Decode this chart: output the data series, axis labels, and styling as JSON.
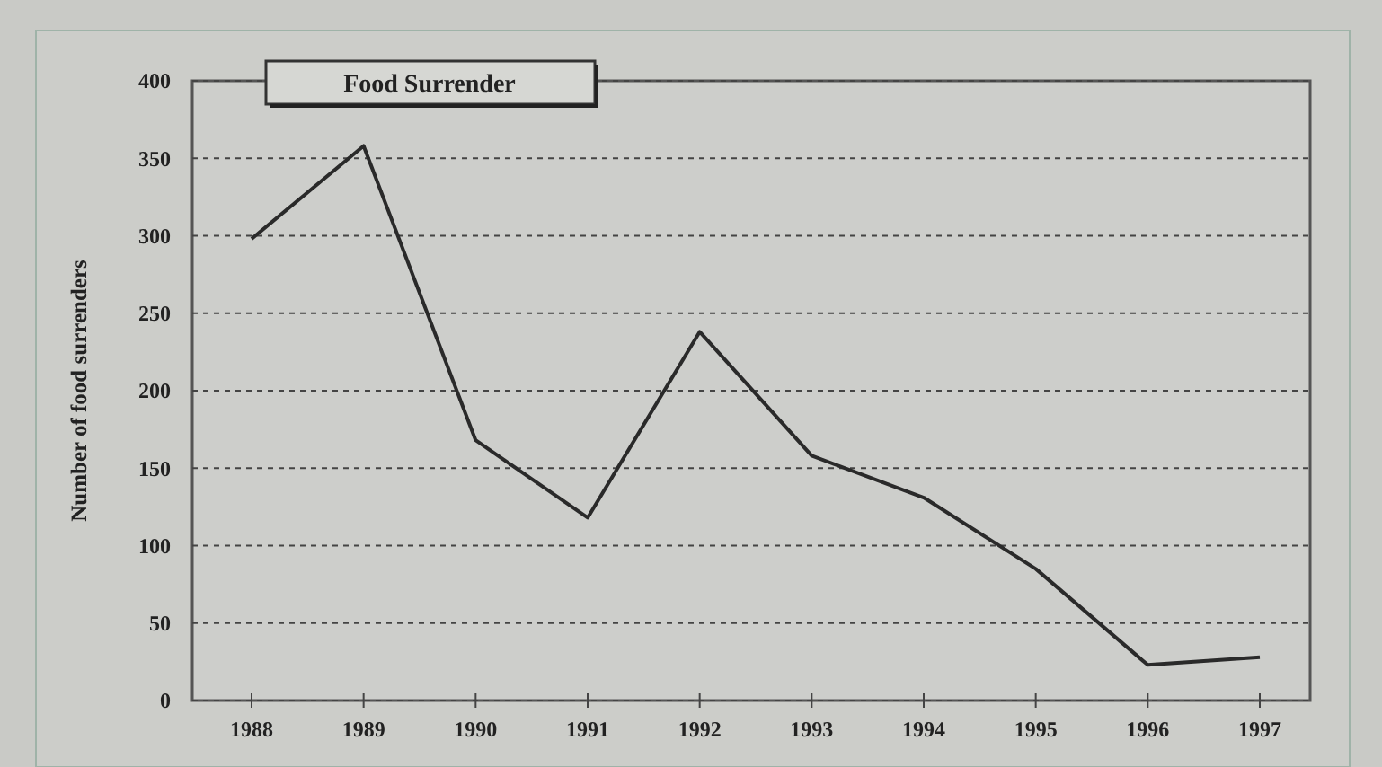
{
  "chart_data": {
    "type": "line",
    "title": "Food Surrender",
    "ylabel": "Number of food surrenders",
    "categories": [
      "1988",
      "1989",
      "1990",
      "1991",
      "1992",
      "1993",
      "1994",
      "1995",
      "1996",
      "1997"
    ],
    "series": [
      {
        "color": "#2a2a2a",
        "values": [
          298,
          358,
          168,
          118,
          238,
          158,
          131,
          85,
          23,
          28
        ]
      }
    ],
    "ylim": [
      0,
      400
    ],
    "yticks": [
      0,
      50,
      100,
      150,
      200,
      250,
      300,
      350,
      400
    ],
    "grid": "y",
    "line_style": "solid",
    "marker": "none"
  }
}
